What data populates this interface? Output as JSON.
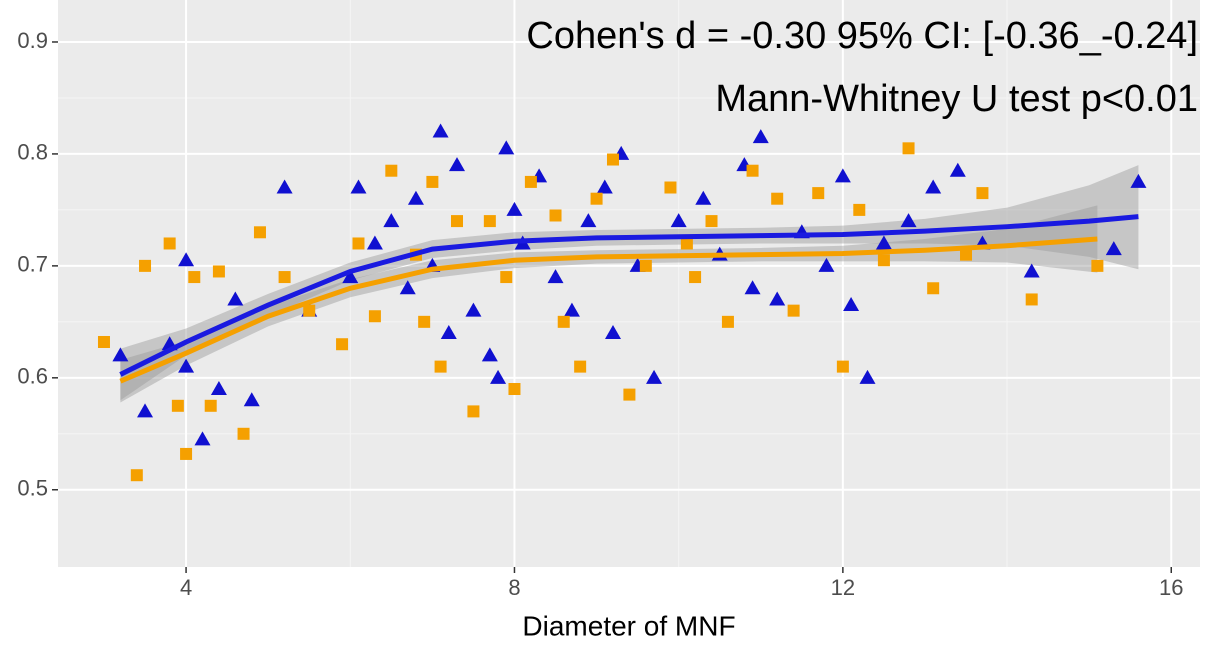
{
  "chart_data": {
    "type": "scatter",
    "xlabel": "Diameter of MNF",
    "annotations": [
      "Cohen's d = -0.30 95% CI: [-0.36_-0.24]",
      "Mann-Whitney U test p<0.01"
    ],
    "xlim": [
      2.44,
      16.35
    ],
    "ylim": [
      0.431,
      0.9375
    ],
    "xticks": [
      4,
      8,
      12,
      16
    ],
    "yticks": [
      0.5,
      0.6,
      0.7,
      0.8,
      0.9
    ],
    "grid": true,
    "series": [
      {
        "color": "#1010d0",
        "marker": "triangle",
        "x": [
          3.2,
          3.5,
          3.8,
          4,
          4,
          4.2,
          4.4,
          4.6,
          4.8,
          5.2,
          5.5,
          6,
          6.1,
          6.3,
          6.5,
          6.8,
          7,
          7.1,
          7.2,
          7.3,
          7.5,
          7.7,
          7.9,
          8,
          8.1,
          8.3,
          8.5,
          8.7,
          8.9,
          9.1,
          9.3,
          9.5,
          9.7,
          10,
          10.3,
          10.5,
          10.8,
          11,
          11.2,
          11.5,
          11.8,
          12,
          12.3,
          12.5,
          12.8,
          13.1,
          13.4,
          13.7,
          14.3,
          15.3,
          15.6,
          9.2,
          7.8,
          6.7,
          10.9,
          12.1
        ],
        "values": [
          0.62,
          0.57,
          0.63,
          0.705,
          0.61,
          0.545,
          0.59,
          0.67,
          0.58,
          0.77,
          0.66,
          0.69,
          0.77,
          0.72,
          0.74,
          0.76,
          0.7,
          0.82,
          0.64,
          0.79,
          0.66,
          0.62,
          0.805,
          0.75,
          0.72,
          0.78,
          0.69,
          0.66,
          0.74,
          0.77,
          0.8,
          0.7,
          0.6,
          0.74,
          0.76,
          0.71,
          0.79,
          0.815,
          0.67,
          0.73,
          0.7,
          0.78,
          0.6,
          0.72,
          0.74,
          0.77,
          0.785,
          0.72,
          0.695,
          0.715,
          0.775,
          0.64,
          0.6,
          0.68,
          0.68,
          0.665
        ]
      },
      {
        "color": "#f5a000",
        "marker": "square",
        "x": [
          3,
          3.4,
          3.5,
          3.8,
          3.9,
          4,
          4.1,
          4.3,
          4.4,
          4.7,
          4.9,
          5.2,
          5.5,
          5.9,
          6.1,
          6.3,
          6.5,
          6.8,
          7,
          7.1,
          7.3,
          7.5,
          7.7,
          7.9,
          8,
          8.2,
          8.5,
          8.8,
          9,
          9.2,
          9.4,
          9.6,
          9.9,
          10.2,
          10.4,
          10.6,
          10.9,
          11.2,
          11.4,
          11.7,
          12,
          12.2,
          12.5,
          12.8,
          13.1,
          13.5,
          13.7,
          14.3,
          15.1,
          8.6,
          6.9,
          10.1
        ],
        "values": [
          0.632,
          0.513,
          0.7,
          0.72,
          0.575,
          0.532,
          0.69,
          0.575,
          0.695,
          0.55,
          0.73,
          0.69,
          0.66,
          0.63,
          0.72,
          0.655,
          0.785,
          0.71,
          0.775,
          0.61,
          0.74,
          0.57,
          0.74,
          0.69,
          0.59,
          0.775,
          0.745,
          0.61,
          0.76,
          0.795,
          0.585,
          0.7,
          0.77,
          0.69,
          0.74,
          0.65,
          0.785,
          0.76,
          0.66,
          0.765,
          0.61,
          0.75,
          0.705,
          0.805,
          0.68,
          0.71,
          0.765,
          0.67,
          0.7,
          0.65,
          0.65,
          0.72
        ]
      }
    ],
    "lines": [
      {
        "color": "#1a1ae0",
        "x": [
          3.2,
          4,
          5,
          6,
          7,
          8,
          9,
          10,
          11,
          12,
          13,
          14,
          15,
          15.6
        ],
        "values": [
          0.603,
          0.632,
          0.665,
          0.695,
          0.715,
          0.722,
          0.725,
          0.726,
          0.727,
          0.728,
          0.731,
          0.735,
          0.74,
          0.744
        ],
        "lower": [
          0.58,
          0.62,
          0.655,
          0.687,
          0.707,
          0.714,
          0.718,
          0.719,
          0.72,
          0.72,
          0.72,
          0.718,
          0.708,
          0.697
        ],
        "upper": [
          0.626,
          0.644,
          0.675,
          0.703,
          0.723,
          0.73,
          0.732,
          0.733,
          0.734,
          0.736,
          0.742,
          0.752,
          0.772,
          0.79
        ]
      },
      {
        "color": "#f5a000",
        "x": [
          3.2,
          4,
          5,
          6,
          7,
          8,
          9,
          10,
          11,
          12,
          13,
          14,
          15.1
        ],
        "values": [
          0.597,
          0.622,
          0.655,
          0.68,
          0.697,
          0.705,
          0.708,
          0.709,
          0.71,
          0.711,
          0.714,
          0.718,
          0.724
        ],
        "lower": [
          0.578,
          0.611,
          0.646,
          0.672,
          0.689,
          0.698,
          0.702,
          0.703,
          0.704,
          0.704,
          0.704,
          0.703,
          0.694
        ],
        "upper": [
          0.616,
          0.633,
          0.664,
          0.688,
          0.705,
          0.712,
          0.714,
          0.715,
          0.716,
          0.718,
          0.724,
          0.733,
          0.754
        ]
      }
    ]
  }
}
